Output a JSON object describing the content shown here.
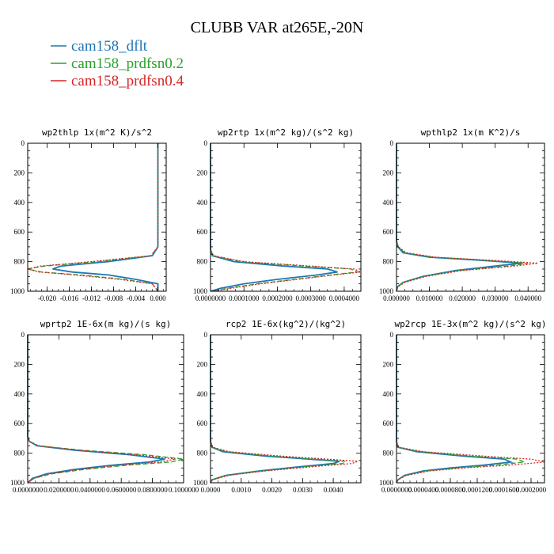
{
  "title": "CLUBB VAR at265E,-20N",
  "legend": [
    {
      "name": "cam158_dflt",
      "color": "#1f77b4",
      "dash": "solid"
    },
    {
      "name": "cam158_prdfsn0.2",
      "color": "#2ca02c",
      "dash": "dash"
    },
    {
      "name": "cam158_prdfsn0.4",
      "color": "#d62728",
      "dash": "dot"
    }
  ],
  "chart_data": [
    {
      "type": "line",
      "title": "wp2thlp  1x(m^2 K)/s^2",
      "xlim": [
        -0.0235,
        0.0015
      ],
      "xticks": [
        -0.02,
        -0.016,
        -0.012,
        -0.008,
        -0.004,
        0.0
      ],
      "xtick_labels": [
        "-0.020",
        "-0.016",
        "-0.012",
        "-0.008",
        "-0.004",
        "0.000"
      ],
      "ylim": [
        0,
        1000
      ],
      "yticks": [
        0,
        200,
        400,
        600,
        800,
        1000
      ],
      "y_reversed": true,
      "y": [
        0,
        700,
        760,
        800,
        830,
        850,
        870,
        890,
        920,
        950,
        1000
      ],
      "series": [
        {
          "x": [
            0.0,
            0.0,
            -0.001,
            -0.009,
            -0.0175,
            -0.019,
            -0.0155,
            -0.009,
            -0.004,
            0.0,
            0.0
          ]
        },
        {
          "x": [
            0.0,
            0.0,
            -0.0012,
            -0.011,
            -0.0205,
            -0.0235,
            -0.021,
            -0.014,
            -0.006,
            -0.001,
            0.0
          ]
        },
        {
          "x": [
            0.0,
            0.0,
            -0.0013,
            -0.012,
            -0.0212,
            -0.0235,
            -0.0215,
            -0.015,
            -0.007,
            -0.001,
            0.0
          ]
        }
      ]
    },
    {
      "type": "line",
      "title": "wp2rtp  1x(m^2 kg)/(s^2 kg)",
      "xlim": [
        0,
        0.00045
      ],
      "xticks": [
        0,
        0.0001,
        0.0002,
        0.0003,
        0.0004
      ],
      "xtick_labels": [
        "0.0000000",
        "0.0001000",
        "0.0002000",
        "0.0003000",
        "0.0004000"
      ],
      "ylim": [
        0,
        1000
      ],
      "yticks": [
        0,
        200,
        400,
        600,
        800,
        1000
      ],
      "y_reversed": true,
      "y": [
        0,
        720,
        760,
        800,
        830,
        850,
        870,
        890,
        920,
        950,
        980,
        1000
      ],
      "series": [
        {
          "x": [
            0,
            0,
            6e-06,
            7e-05,
            0.00022,
            0.00035,
            0.00038,
            0.00032,
            0.0002,
            0.0001,
            3e-05,
            0.0
          ]
        },
        {
          "x": [
            0,
            0,
            8e-06,
            9e-05,
            0.00028,
            0.00042,
            0.00044,
            0.00036,
            0.00025,
            0.00014,
            5e-05,
            1e-05
          ]
        },
        {
          "x": [
            0,
            0,
            9e-06,
            0.0001,
            0.0003,
            0.00043,
            0.00045,
            0.00037,
            0.00026,
            0.00015,
            6e-05,
            1e-05
          ]
        }
      ]
    },
    {
      "type": "line",
      "title": "wpthlp2  1x(m K^2)/s",
      "xlim": [
        0,
        0.045
      ],
      "xticks": [
        0,
        0.01,
        0.02,
        0.03,
        0.04
      ],
      "xtick_labels": [
        "0.000000",
        "0.010000",
        "0.020000",
        "0.030000",
        "0.040000"
      ],
      "ylim": [
        0,
        1000
      ],
      "yticks": [
        0,
        200,
        400,
        600,
        800,
        1000
      ],
      "y_reversed": true,
      "y": [
        0,
        660,
        700,
        740,
        770,
        790,
        810,
        830,
        860,
        900,
        940,
        970,
        1000
      ],
      "series": [
        {
          "x": [
            0,
            0,
            0.0004,
            0.002,
            0.01,
            0.025,
            0.038,
            0.03,
            0.018,
            0.008,
            0.002,
            0.0003,
            0
          ]
        },
        {
          "x": [
            0,
            0,
            0.0005,
            0.0025,
            0.011,
            0.026,
            0.04,
            0.034,
            0.019,
            0.008,
            0.002,
            0.0003,
            0
          ]
        },
        {
          "x": [
            0,
            0,
            0.0006,
            0.003,
            0.012,
            0.028,
            0.043,
            0.036,
            0.02,
            0.009,
            0.0025,
            0.0004,
            0
          ]
        }
      ]
    },
    {
      "type": "line",
      "title": "wprtp2  1E-6x(m kg)/(s kg)",
      "xlim": [
        0,
        0.1
      ],
      "xticks": [
        0,
        0.02,
        0.04,
        0.06,
        0.08,
        0.1
      ],
      "xtick_labels": [
        "0.0000000",
        "0.0200000",
        "0.0400000",
        "0.0600000",
        "0.0800000",
        "0.1000000"
      ],
      "ylim": [
        0,
        1000
      ],
      "yticks": [
        0,
        200,
        400,
        600,
        800,
        1000
      ],
      "y_reversed": true,
      "y": [
        0,
        690,
        720,
        750,
        780,
        810,
        840,
        860,
        880,
        910,
        940,
        970,
        1000
      ],
      "series": [
        {
          "x": [
            0,
            0,
            0.001,
            0.006,
            0.03,
            0.065,
            0.088,
            0.078,
            0.055,
            0.03,
            0.012,
            0.003,
            0
          ]
        },
        {
          "x": [
            0,
            0,
            0.001,
            0.007,
            0.035,
            0.075,
            0.1,
            0.092,
            0.065,
            0.036,
            0.015,
            0.004,
            0
          ]
        },
        {
          "x": [
            0,
            0,
            0.001,
            0.007,
            0.033,
            0.07,
            0.095,
            0.085,
            0.06,
            0.033,
            0.014,
            0.004,
            0
          ]
        }
      ]
    },
    {
      "type": "line",
      "title": "rcp2  1E-6x(kg^2)/(kg^2)",
      "xlim": [
        0,
        0.0049
      ],
      "xticks": [
        0,
        0.001,
        0.002,
        0.003,
        0.004
      ],
      "xtick_labels": [
        "0.0000",
        "0.0010",
        "0.0020",
        "0.0030",
        "0.0040"
      ],
      "ylim": [
        0,
        1000
      ],
      "yticks": [
        0,
        200,
        400,
        600,
        800,
        1000
      ],
      "y_reversed": true,
      "y": [
        0,
        720,
        760,
        790,
        820,
        840,
        855,
        870,
        890,
        920,
        950,
        980,
        1000
      ],
      "series": [
        {
          "x": [
            0,
            0,
            5e-05,
            0.0004,
            0.0018,
            0.0032,
            0.0042,
            0.004,
            0.003,
            0.0016,
            0.0005,
            5e-05,
            0
          ]
        },
        {
          "x": [
            0,
            0,
            6e-05,
            0.0005,
            0.002,
            0.0034,
            0.0044,
            0.0043,
            0.0032,
            0.0017,
            0.0005,
            5e-05,
            0
          ]
        },
        {
          "x": [
            0,
            0,
            7e-05,
            0.0006,
            0.0023,
            0.0038,
            0.0048,
            0.0046,
            0.0034,
            0.0018,
            0.0006,
            6e-05,
            0
          ]
        }
      ]
    },
    {
      "type": "line",
      "title": "wp2rcp  1E-3x(m^2 kg)/(s^2 kg)",
      "xlim": [
        0,
        0.00022
      ],
      "xticks": [
        0,
        4e-05,
        8e-05,
        0.00012,
        0.00016,
        0.0002
      ],
      "xtick_labels": [
        "0.0000000",
        "0.0000400",
        "0.0000800",
        "0.0001200",
        "0.0001600",
        "0.0002000"
      ],
      "ylim": [
        0,
        1000
      ],
      "yticks": [
        0,
        200,
        400,
        600,
        800,
        1000
      ],
      "y_reversed": true,
      "y": [
        0,
        720,
        760,
        790,
        820,
        840,
        860,
        880,
        900,
        920,
        950,
        980,
        1000
      ],
      "series": [
        {
          "x": [
            0,
            0,
            2e-06,
            3e-05,
            0.0001,
            0.00016,
            0.00017,
            0.00013,
            8e-05,
            4e-05,
            1.2e-05,
            2e-06,
            0
          ]
        },
        {
          "x": [
            0,
            0,
            2e-06,
            3.5e-05,
            0.00011,
            0.00018,
            0.00019,
            0.00015,
            9e-05,
            4.5e-05,
            1.3e-05,
            2e-06,
            0
          ]
        },
        {
          "x": [
            0,
            0,
            3e-06,
            4e-05,
            0.00013,
            0.0002,
            0.00022,
            0.00017,
            0.0001,
            5e-05,
            1.5e-05,
            2e-06,
            0
          ]
        }
      ]
    }
  ]
}
